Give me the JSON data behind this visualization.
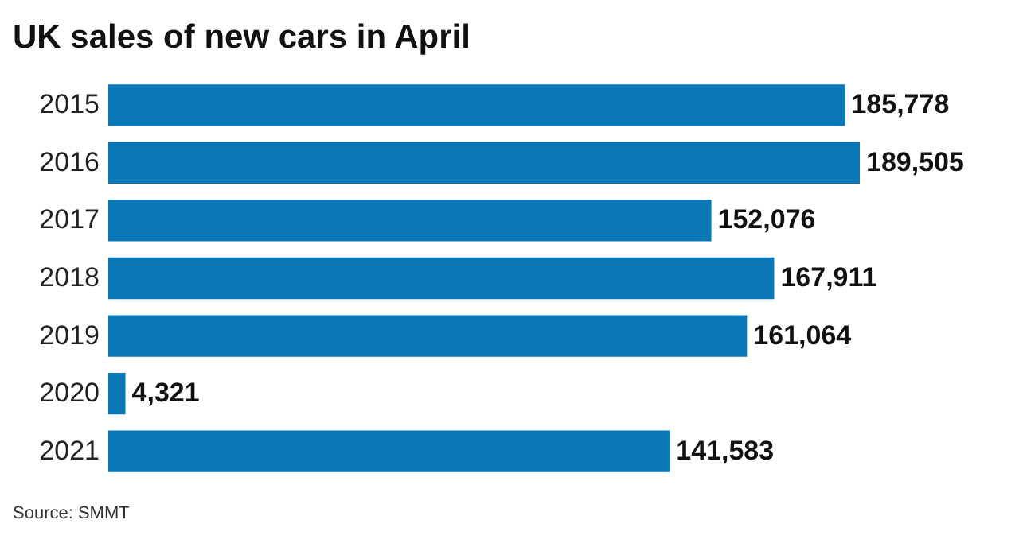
{
  "chart_data": {
    "type": "bar",
    "orientation": "horizontal",
    "title": "UK sales of new cars in April",
    "categories": [
      "2015",
      "2016",
      "2017",
      "2018",
      "2019",
      "2020",
      "2021"
    ],
    "values": [
      185778,
      189505,
      152076,
      167911,
      161064,
      4321,
      141583
    ],
    "color": "#0a77b7",
    "value_labels": [
      "185,778",
      "189,505",
      "152,076",
      "167,911",
      "161,064",
      "4,321",
      "141,583"
    ],
    "annotations": [
      "Source: SMMT"
    ]
  }
}
